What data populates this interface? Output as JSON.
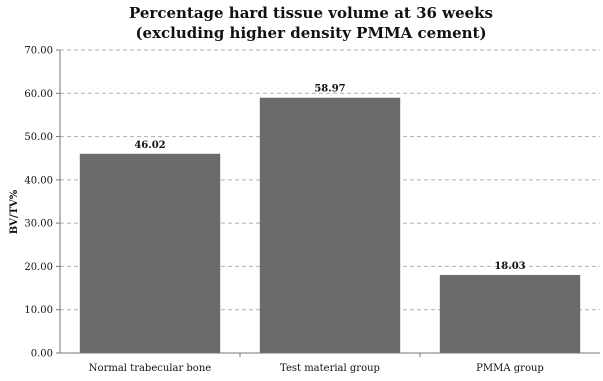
{
  "chart_data": {
    "type": "bar",
    "title": [
      "Percentage hard tissue volume at 36 weeks",
      "(excluding higher density PMMA cement)"
    ],
    "ylabel": "BV/TV%",
    "xlabel": "",
    "categories": [
      "Normal trabecular bone",
      "Test material group",
      "PMMA group"
    ],
    "values": [
      46.02,
      58.97,
      18.03
    ],
    "data_labels": [
      "46.02",
      "58.97",
      "18.03"
    ],
    "ylim": [
      0,
      70
    ],
    "yticks": [
      "0.00",
      "10.00",
      "20.00",
      "30.00",
      "40.00",
      "50.00",
      "60.00",
      "70.00"
    ],
    "ytick_values": [
      0,
      10,
      20,
      30,
      40,
      50,
      60,
      70
    ],
    "grid": true,
    "bar_color": "#6b6b6b"
  }
}
